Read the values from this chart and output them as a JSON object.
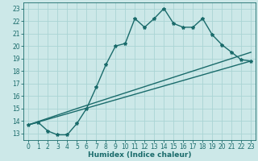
{
  "xlabel": "Humidex (Indice chaleur)",
  "ylabel": "",
  "xlim": [
    -0.5,
    23.5
  ],
  "ylim": [
    12.5,
    23.5
  ],
  "xticks": [
    0,
    1,
    2,
    3,
    4,
    5,
    6,
    7,
    8,
    9,
    10,
    11,
    12,
    13,
    14,
    15,
    16,
    17,
    18,
    19,
    20,
    21,
    22,
    23
  ],
  "yticks": [
    13,
    14,
    15,
    16,
    17,
    18,
    19,
    20,
    21,
    22,
    23
  ],
  "bg_color": "#cce8e8",
  "grid_color": "#aad4d4",
  "line_color": "#1a6b6b",
  "line1_x": [
    0,
    1,
    2,
    3,
    4,
    5,
    6,
    7,
    8,
    9,
    10,
    11,
    12,
    13,
    14,
    15,
    16,
    17,
    18,
    19,
    20,
    21,
    22,
    23
  ],
  "line1_y": [
    13.7,
    13.9,
    13.2,
    12.9,
    12.9,
    13.8,
    15.0,
    16.7,
    18.5,
    20.0,
    20.2,
    22.2,
    21.5,
    22.2,
    23.0,
    21.8,
    21.5,
    21.5,
    22.2,
    20.9,
    20.1,
    19.5,
    18.9,
    18.8
  ],
  "line2_x": [
    0,
    23
  ],
  "line2_y": [
    13.7,
    18.8
  ],
  "line3_x": [
    0,
    5,
    23
  ],
  "line3_y": [
    13.7,
    15.0,
    19.5
  ],
  "marker": "*",
  "markersize": 3,
  "linewidth": 1.0,
  "tick_fontsize": 5.5,
  "xlabel_fontsize": 6.5
}
